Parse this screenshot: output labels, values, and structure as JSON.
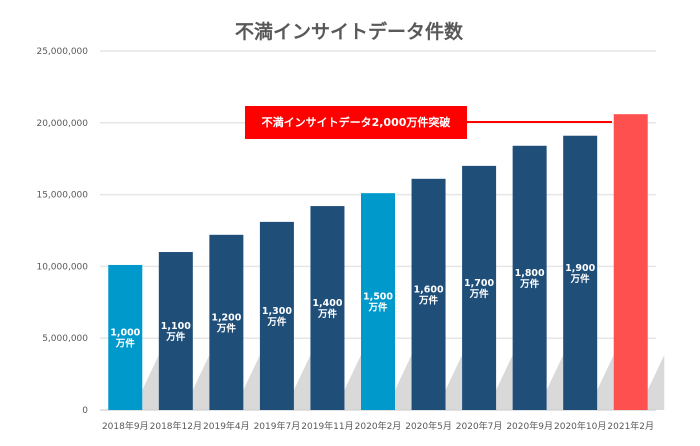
{
  "chart_data": {
    "type": "bar",
    "title": "不満インサイトデータ件数",
    "xlabel": "",
    "ylabel": "",
    "ylim": [
      0,
      25000000
    ],
    "yticks": [
      "0",
      "5,000,000",
      "10,000,000",
      "15,000,000",
      "20,000,000",
      "25,000,000"
    ],
    "ytick_values": [
      0,
      5000000,
      10000000,
      15000000,
      20000000,
      25000000
    ],
    "grid": true,
    "categories": [
      "2018年9月",
      "2018年12月",
      "2019年4月",
      "2019年7月",
      "2019年11月",
      "2020年2月",
      "2020年5月",
      "2020年7月",
      "2020年9月",
      "2020年10月",
      "2021年2月"
    ],
    "values": [
      10100000,
      11000000,
      12200000,
      13100000,
      14200000,
      15100000,
      16100000,
      17000000,
      18400000,
      19100000,
      20600000
    ],
    "data_labels": [
      [
        "1,000",
        "万件"
      ],
      [
        "1,100",
        "万件"
      ],
      [
        "1,200",
        "万件"
      ],
      [
        "1,300",
        "万件"
      ],
      [
        "1,400",
        "万件"
      ],
      [
        "1,500",
        "万件"
      ],
      [
        "1,600",
        "万件"
      ],
      [
        "1,700",
        "万件"
      ],
      [
        "1,800",
        "万件"
      ],
      [
        "1,900",
        "万件"
      ],
      null
    ],
    "bar_colors": [
      "#0099cc",
      "#1f4e79",
      "#1f4e79",
      "#1f4e79",
      "#1f4e79",
      "#0099cc",
      "#1f4e79",
      "#1f4e79",
      "#1f4e79",
      "#1f4e79",
      "#ff5050"
    ],
    "annotation": {
      "text": "不満インサイトデータ2,000万件突破",
      "color": "#ff0000"
    }
  }
}
